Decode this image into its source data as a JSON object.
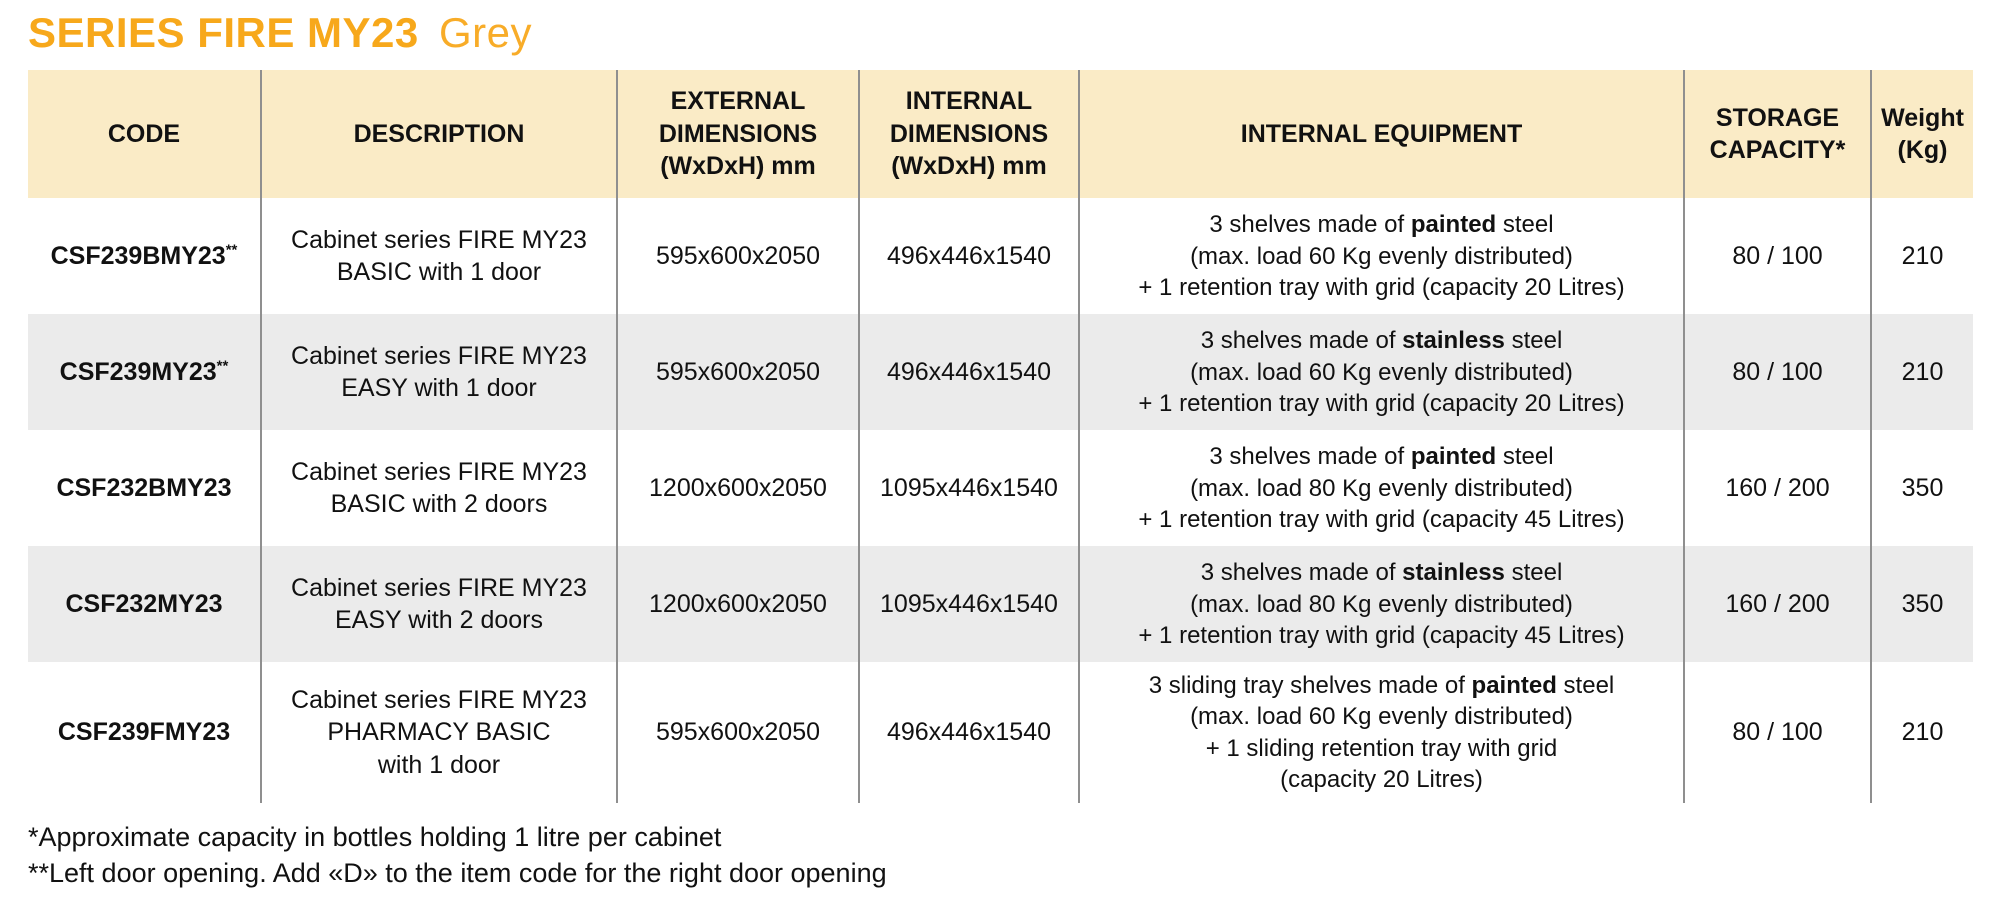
{
  "page": {
    "title_main": "SERIES FIRE MY23",
    "title_variant": "Grey"
  },
  "colors": {
    "accent_orange": "#F7A81B",
    "header_background": "#FAEBC6",
    "alternate_row_background": "#EBEBEB",
    "column_divider": "#8F8F8F",
    "text": "#111111"
  },
  "table": {
    "headers": [
      "CODE",
      "DESCRIPTION",
      "EXTERNAL\nDIMENSIONS\n(WxDxH) mm",
      "INTERNAL\nDIMENSIONS\n(WxDxH) mm",
      "INTERNAL EQUIPMENT",
      "STORAGE\nCAPACITY*",
      "Weight\n(Kg)"
    ],
    "rows": [
      {
        "code": "CSF239BMY23",
        "code_marker": "**",
        "description": "Cabinet series FIRE MY23\nBASIC with 1 door",
        "external_dimensions": "595x600x2050",
        "internal_dimensions": "496x446x1540",
        "equipment": [
          [
            {
              "text": "3 shelves made of "
            },
            {
              "text": "painted",
              "bold": true
            },
            {
              "text": " steel"
            }
          ],
          [
            {
              "text": "(max. load 60 Kg evenly distributed)"
            }
          ],
          [
            {
              "text": "+ 1 retention tray with grid (capacity 20 Litres)"
            }
          ]
        ],
        "storage_capacity": "80 / 100",
        "weight": "210"
      },
      {
        "code": "CSF239MY23",
        "code_marker": "**",
        "description": "Cabinet series FIRE MY23\nEASY with 1 door",
        "external_dimensions": "595x600x2050",
        "internal_dimensions": "496x446x1540",
        "equipment": [
          [
            {
              "text": "3 shelves made of "
            },
            {
              "text": "stainless",
              "bold": true
            },
            {
              "text": " steel"
            }
          ],
          [
            {
              "text": "(max. load 60 Kg evenly distributed)"
            }
          ],
          [
            {
              "text": "+ 1 retention tray with grid (capacity 20 Litres)"
            }
          ]
        ],
        "storage_capacity": "80 / 100",
        "weight": "210"
      },
      {
        "code": "CSF232BMY23",
        "code_marker": "",
        "description": "Cabinet series FIRE MY23\nBASIC with 2 doors",
        "external_dimensions": "1200x600x2050",
        "internal_dimensions": "1095x446x1540",
        "equipment": [
          [
            {
              "text": "3 shelves made of "
            },
            {
              "text": "painted",
              "bold": true
            },
            {
              "text": " steel"
            }
          ],
          [
            {
              "text": "(max. load 80 Kg evenly distributed)"
            }
          ],
          [
            {
              "text": "+ 1 retention tray with grid (capacity 45 Litres)"
            }
          ]
        ],
        "storage_capacity": "160 / 200",
        "weight": "350"
      },
      {
        "code": "CSF232MY23",
        "code_marker": "",
        "description": "Cabinet series FIRE MY23\nEASY with 2 doors",
        "external_dimensions": "1200x600x2050",
        "internal_dimensions": "1095x446x1540",
        "equipment": [
          [
            {
              "text": "3 shelves made of "
            },
            {
              "text": "stainless",
              "bold": true
            },
            {
              "text": " steel"
            }
          ],
          [
            {
              "text": "(max. load 80 Kg evenly distributed)"
            }
          ],
          [
            {
              "text": "+ 1 retention tray with grid (capacity 45 Litres)"
            }
          ]
        ],
        "storage_capacity": "160 / 200",
        "weight": "350"
      },
      {
        "code": "CSF239FMY23",
        "code_marker": "",
        "description": "Cabinet series FIRE MY23\nPHARMACY BASIC\nwith 1 door",
        "external_dimensions": "595x600x2050",
        "internal_dimensions": "496x446x1540",
        "equipment": [
          [
            {
              "text": "3 sliding tray shelves made of "
            },
            {
              "text": "painted",
              "bold": true
            },
            {
              "text": " steel"
            }
          ],
          [
            {
              "text": "(max. load 60 Kg evenly distributed)"
            }
          ],
          [
            {
              "text": "+ 1 sliding retention tray with grid"
            }
          ],
          [
            {
              "text": "(capacity 20 Litres)"
            }
          ]
        ],
        "storage_capacity": "80 / 100",
        "weight": "210"
      }
    ]
  },
  "footnotes": [
    "*Approximate capacity in bottles holding 1 litre per cabinet",
    "**Left door opening. Add «D» to the item code for the right door opening"
  ]
}
